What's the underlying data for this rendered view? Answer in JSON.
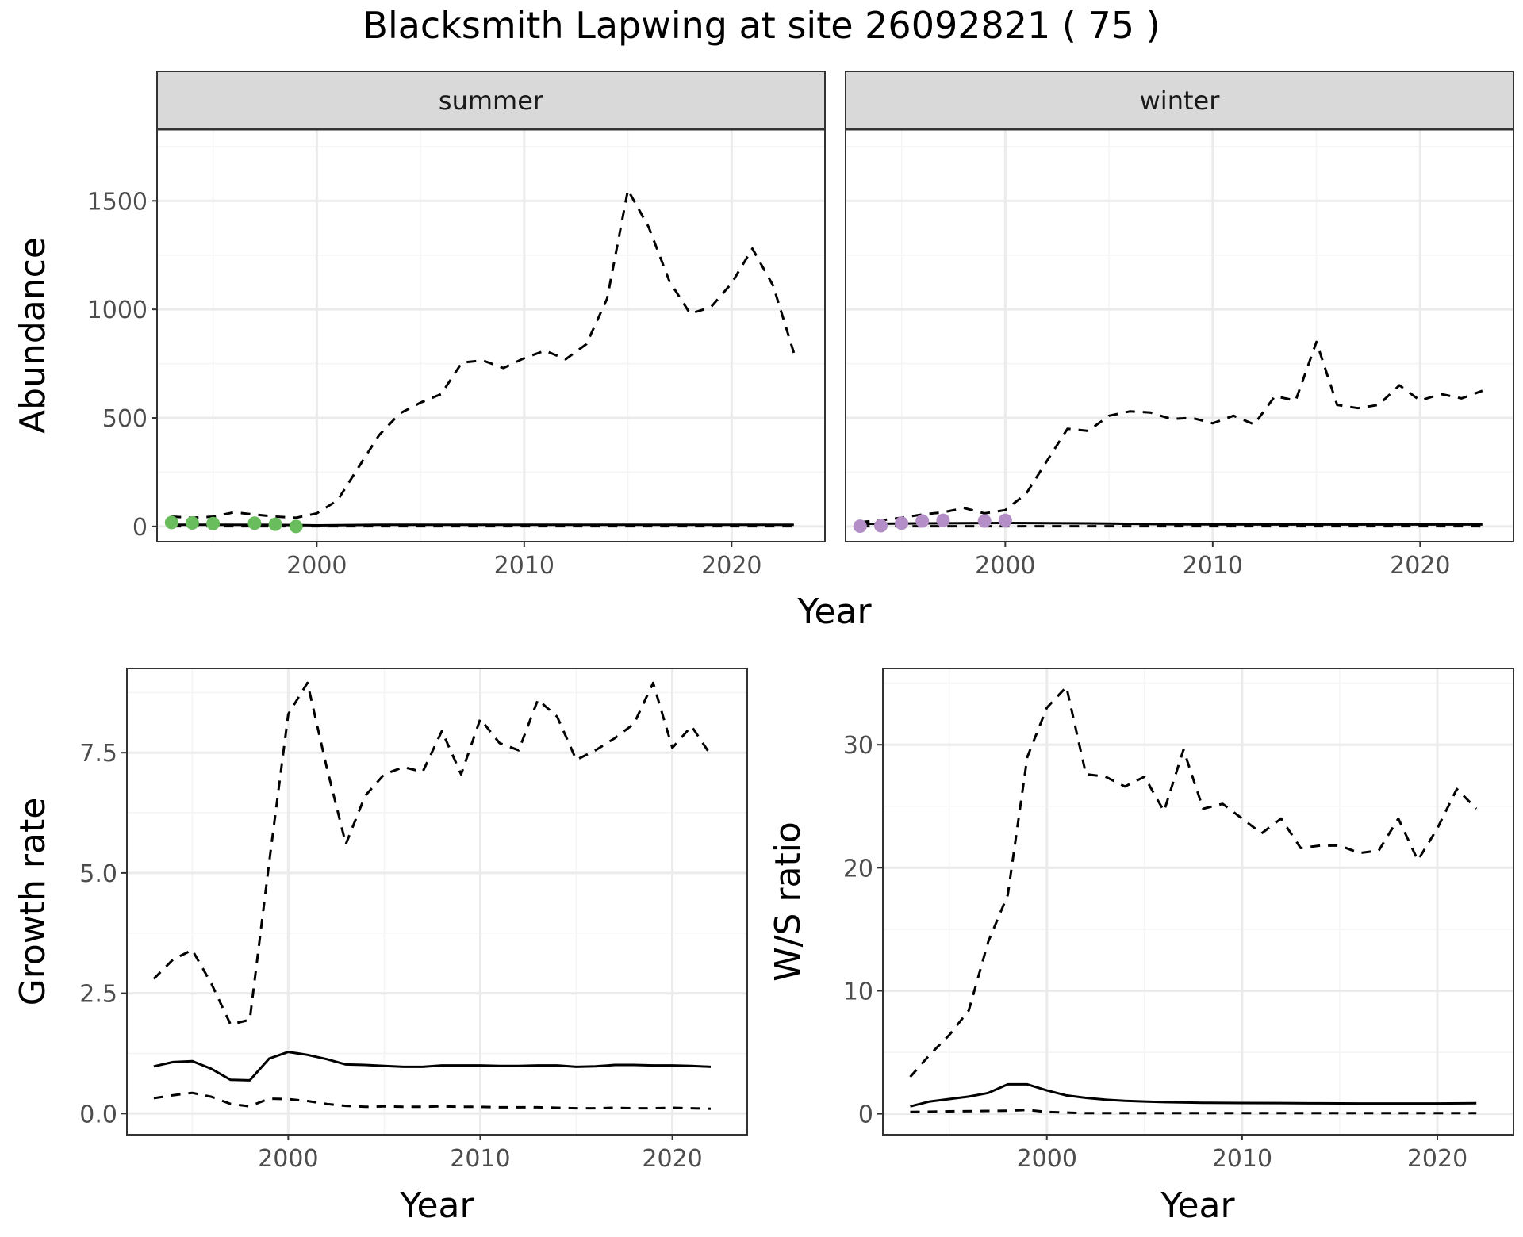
{
  "title": "Blacksmith Lapwing at site 26092821 ( 75 )",
  "colors": {
    "summer_points": "#6abd5c",
    "winter_points": "#b48ec6",
    "line": "#000000",
    "strip_bg": "#d9d9d9",
    "grid_major": "#ebebeb",
    "grid_minor": "#f4f4f4"
  },
  "chart_data": [
    {
      "id": "abundance",
      "type": "line",
      "facets": [
        "summer",
        "winter"
      ],
      "xlabel": "Year",
      "ylabel": "Abundance",
      "xlim": [
        1992.3,
        2024.5
      ],
      "ylim": [
        -70,
        1830
      ],
      "x_ticks": [
        2000,
        2010,
        2020
      ],
      "y_ticks": [
        0,
        500,
        1000,
        1500
      ],
      "y_tick_labels": [
        "0",
        "500",
        "1000",
        "1500"
      ],
      "grid": true,
      "panels": [
        {
          "facet": "summer",
          "point_color_key": "summer_points",
          "points": [
            [
              1993,
              18
            ],
            [
              1994,
              16
            ],
            [
              1995,
              13
            ],
            [
              1997,
              15
            ],
            [
              1998,
              10
            ],
            [
              1999,
              0
            ]
          ],
          "median": {
            "x": [
              1993,
              1995,
              1998,
              2000,
              2003,
              2008,
              2013,
              2018,
              2023
            ],
            "y": [
              8,
              8,
              7,
              5,
              8,
              8,
              8,
              8,
              8
            ]
          },
          "upper": {
            "x": [
              1993,
              1994,
              1995,
              1996,
              1997,
              1998,
              1999,
              2000,
              2001,
              2002,
              2003,
              2004,
              2005,
              2006,
              2007,
              2008,
              2009,
              2010,
              2011,
              2012,
              2013,
              2014,
              2015,
              2016,
              2017,
              2018,
              2019,
              2020,
              2021,
              2022,
              2023
            ],
            "y": [
              45,
              40,
              45,
              65,
              55,
              45,
              40,
              60,
              120,
              270,
              420,
              520,
              570,
              610,
              755,
              765,
              730,
              775,
              810,
              770,
              840,
              1050,
              1550,
              1380,
              1130,
              980,
              1010,
              1120,
              1280,
              1110,
              800
            ]
          },
          "lower": {
            "x": [
              1993,
              2003,
              2013,
              2023
            ],
            "y": [
              1,
              1,
              1,
              1
            ]
          }
        },
        {
          "facet": "winter",
          "point_color_key": "winter_points",
          "points": [
            [
              1993,
              1
            ],
            [
              1994,
              3
            ],
            [
              1995,
              15
            ],
            [
              1996,
              25
            ],
            [
              1997,
              28
            ],
            [
              1999,
              25
            ],
            [
              2000,
              28
            ]
          ],
          "median": {
            "x": [
              1993,
              1996,
              2000,
              2004,
              2008,
              2013,
              2018,
              2023
            ],
            "y": [
              12,
              14,
              16,
              14,
              10,
              9,
              9,
              9
            ]
          },
          "upper": {
            "x": [
              1993,
              1994,
              1995,
              1996,
              1997,
              1998,
              1999,
              2000,
              2001,
              2002,
              2003,
              2004,
              2005,
              2006,
              2007,
              2008,
              2009,
              2010,
              2011,
              2012,
              2013,
              2014,
              2015,
              2016,
              2017,
              2018,
              2019,
              2020,
              2021,
              2022,
              2023
            ],
            "y": [
              20,
              28,
              40,
              55,
              65,
              85,
              60,
              75,
              150,
              300,
              450,
              440,
              510,
              530,
              525,
              495,
              500,
              475,
              510,
              470,
              600,
              580,
              850,
              560,
              545,
              560,
              650,
              580,
              610,
              590,
              625
            ]
          },
          "lower": {
            "x": [
              1993,
              2003,
              2013,
              2023
            ],
            "y": [
              1,
              1,
              1,
              1
            ]
          }
        }
      ]
    },
    {
      "id": "growth",
      "type": "line",
      "xlabel": "Year",
      "ylabel": "Growth rate",
      "xlim": [
        1991.6,
        2023.9
      ],
      "ylim": [
        -0.44,
        9.25
      ],
      "x_ticks": [
        2000,
        2010,
        2020
      ],
      "y_ticks": [
        0,
        2.5,
        5,
        7.5
      ],
      "y_tick_labels": [
        "0.0",
        "2.5",
        "5.0",
        "7.5"
      ],
      "grid": true,
      "median": {
        "x": [
          1993,
          1994,
          1995,
          1996,
          1997,
          1998,
          1999,
          2000,
          2001,
          2002,
          2003,
          2004,
          2005,
          2006,
          2007,
          2008,
          2009,
          2010,
          2011,
          2012,
          2013,
          2014,
          2015,
          2016,
          2017,
          2018,
          2019,
          2020,
          2021,
          2022
        ],
        "y": [
          0.98,
          1.07,
          1.09,
          0.93,
          0.7,
          0.69,
          1.14,
          1.28,
          1.22,
          1.13,
          1.02,
          1.01,
          0.99,
          0.97,
          0.97,
          1.0,
          1.0,
          1.0,
          0.99,
          0.99,
          1.0,
          1.0,
          0.97,
          0.98,
          1.01,
          1.01,
          1.0,
          1.0,
          0.99,
          0.97
        ]
      },
      "upper": {
        "x": [
          1993,
          1994,
          1995,
          1996,
          1997,
          1998,
          1999,
          2000,
          2001,
          2002,
          2003,
          2004,
          2005,
          2006,
          2007,
          2008,
          2009,
          2010,
          2011,
          2012,
          2013,
          2014,
          2015,
          2016,
          2017,
          2018,
          2019,
          2020,
          2021,
          2022
        ],
        "y": [
          2.8,
          3.2,
          3.4,
          2.7,
          1.85,
          1.95,
          5.2,
          8.3,
          8.95,
          7.2,
          5.6,
          6.6,
          7.05,
          7.2,
          7.1,
          7.95,
          7.05,
          8.2,
          7.7,
          7.55,
          8.6,
          8.25,
          7.35,
          7.55,
          7.8,
          8.1,
          8.95,
          7.6,
          8.05,
          7.45
        ]
      },
      "lower": {
        "x": [
          1993,
          1994,
          1995,
          1996,
          1997,
          1998,
          1999,
          2000,
          2001,
          2002,
          2003,
          2004,
          2005,
          2006,
          2007,
          2008,
          2009,
          2010,
          2011,
          2012,
          2013,
          2014,
          2015,
          2016,
          2017,
          2018,
          2019,
          2020,
          2021,
          2022
        ],
        "y": [
          0.32,
          0.38,
          0.43,
          0.35,
          0.2,
          0.15,
          0.31,
          0.3,
          0.26,
          0.2,
          0.16,
          0.14,
          0.15,
          0.14,
          0.14,
          0.15,
          0.14,
          0.14,
          0.13,
          0.13,
          0.13,
          0.12,
          0.11,
          0.11,
          0.12,
          0.11,
          0.11,
          0.12,
          0.11,
          0.1
        ]
      }
    },
    {
      "id": "ratio",
      "type": "line",
      "xlabel": "Year",
      "ylabel": "W/S ratio",
      "xlim": [
        1991.6,
        2023.9
      ],
      "ylim": [
        -1.7,
        36.2
      ],
      "x_ticks": [
        2000,
        2010,
        2020
      ],
      "y_ticks": [
        0,
        10,
        20,
        30
      ],
      "y_tick_labels": [
        "0",
        "10",
        "20",
        "30"
      ],
      "grid": true,
      "median": {
        "x": [
          1993,
          1994,
          1995,
          1996,
          1997,
          1998,
          1999,
          2000,
          2001,
          2002,
          2003,
          2004,
          2005,
          2006,
          2008,
          2010,
          2012,
          2014,
          2016,
          2018,
          2020,
          2022
        ],
        "y": [
          0.6,
          1.0,
          1.2,
          1.4,
          1.7,
          2.4,
          2.4,
          1.9,
          1.5,
          1.3,
          1.15,
          1.05,
          1.0,
          0.95,
          0.9,
          0.88,
          0.87,
          0.85,
          0.84,
          0.84,
          0.84,
          0.86
        ]
      },
      "upper": {
        "x": [
          1993,
          1994,
          1995,
          1996,
          1997,
          1998,
          1999,
          2000,
          2001,
          2002,
          2003,
          2004,
          2005,
          2006,
          2007,
          2008,
          2009,
          2010,
          2011,
          2012,
          2013,
          2014,
          2015,
          2016,
          2017,
          2018,
          2019,
          2020,
          2021,
          2022
        ],
        "y": [
          3.0,
          4.8,
          6.4,
          8.4,
          14.0,
          17.8,
          29.0,
          33.0,
          34.7,
          27.6,
          27.4,
          26.6,
          27.4,
          24.6,
          29.6,
          24.8,
          25.2,
          24.0,
          22.8,
          24.0,
          21.6,
          21.8,
          21.8,
          21.2,
          21.4,
          24.0,
          20.6,
          23.2,
          26.4,
          24.8
        ]
      },
      "lower": {
        "x": [
          1993,
          1995,
          1998,
          1999,
          2000,
          2002,
          2006,
          2010,
          2014,
          2018,
          2022
        ],
        "y": [
          0.15,
          0.2,
          0.25,
          0.32,
          0.15,
          0.05,
          0.05,
          0.05,
          0.05,
          0.05,
          0.05
        ]
      }
    }
  ]
}
